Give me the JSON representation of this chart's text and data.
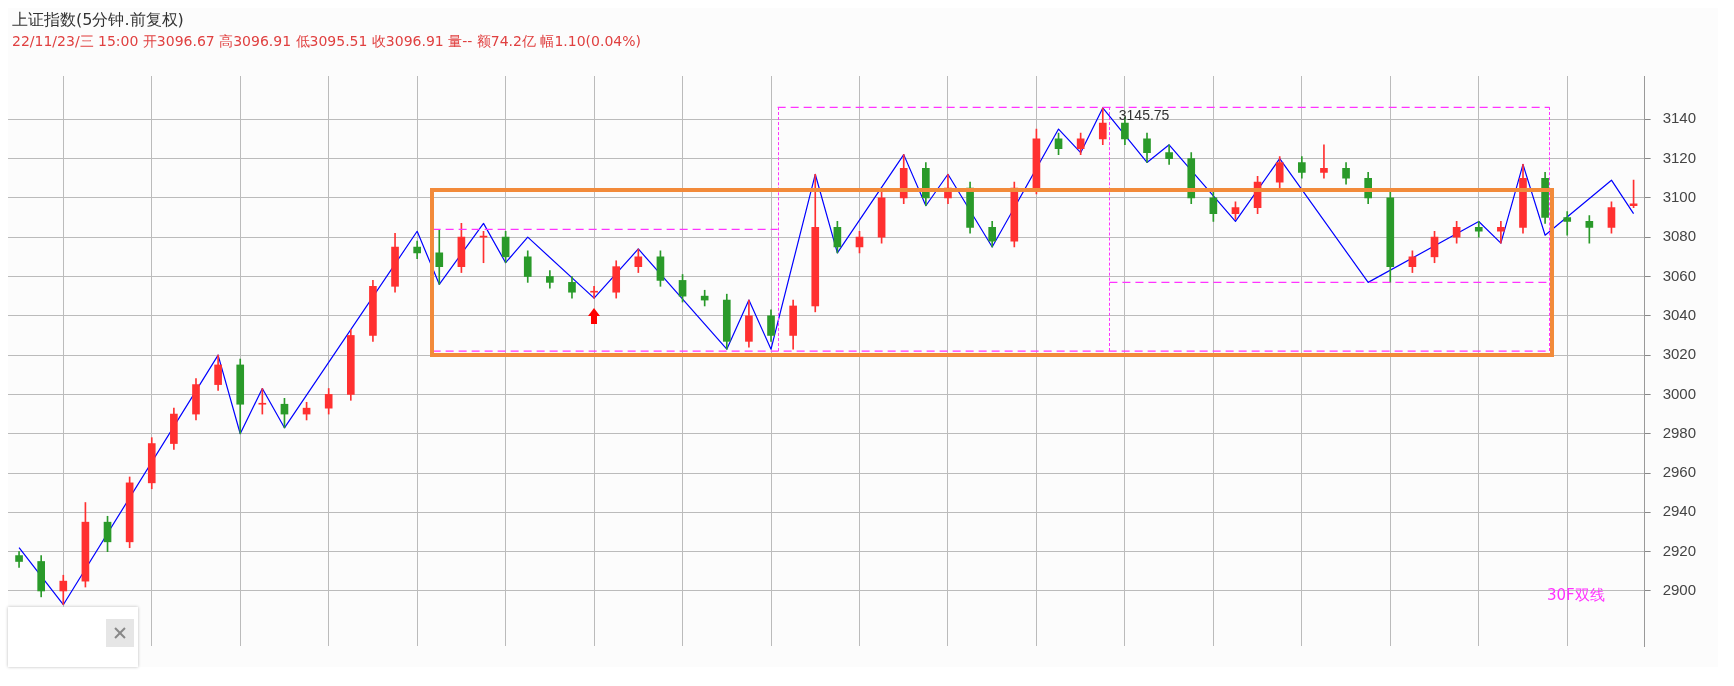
{
  "chart_data": {
    "type": "candlestick",
    "title": "上证指数(5分钟.前复权)",
    "subtitle": "22/11/23/三 15:00 开3096.67 高3096.91 低3095.51 收3096.91 量-- 额74.2亿 幅1.10(0.04%)",
    "categories": [
      null,
      null,
      null,
      null,
      null,
      null,
      null,
      null,
      null,
      null,
      null,
      null,
      null,
      null,
      null,
      null,
      null,
      null,
      null,
      null,
      null,
      null,
      null,
      null,
      null,
      null,
      null,
      null,
      null,
      null,
      null,
      null,
      null,
      null,
      null,
      null,
      null,
      null,
      null,
      null,
      null,
      null,
      null,
      null,
      null,
      null,
      null,
      null,
      null,
      null,
      null,
      null,
      null,
      null,
      null,
      null,
      null,
      null,
      null,
      null,
      null,
      null,
      null,
      null,
      null,
      null,
      null,
      null,
      null,
      null,
      null,
      null,
      null,
      null
    ],
    "ohlc": [
      [
        2918,
        2920,
        2912,
        2915
      ],
      [
        2915,
        2918,
        2897,
        2900
      ],
      [
        2900,
        2908,
        2893,
        2905
      ],
      [
        2905,
        2945,
        2902,
        2935
      ],
      [
        2935,
        2938,
        2920,
        2925
      ],
      [
        2925,
        2958,
        2922,
        2955
      ],
      [
        2955,
        2978,
        2952,
        2975
      ],
      [
        2975,
        2993,
        2972,
        2990
      ],
      [
        2990,
        3008,
        2987,
        3005
      ],
      [
        3005,
        3020,
        3002,
        3015
      ],
      [
        3015,
        3018,
        2980,
        2995
      ],
      [
        2995,
        3003,
        2990,
        2995
      ],
      [
        2995,
        2998,
        2983,
        2990
      ],
      [
        2990,
        2996,
        2987,
        2993
      ],
      [
        2993,
        3003,
        2990,
        3000
      ],
      [
        3000,
        3033,
        2997,
        3030
      ],
      [
        3030,
        3058,
        3027,
        3055
      ],
      [
        3055,
        3082,
        3052,
        3075
      ],
      [
        3075,
        3078,
        3069,
        3072
      ],
      [
        3072,
        3084,
        3056,
        3065
      ],
      [
        3065,
        3087,
        3062,
        3080
      ],
      [
        3080,
        3083,
        3067,
        3080
      ],
      [
        3080,
        3083,
        3067,
        3070
      ],
      [
        3070,
        3073,
        3057,
        3060
      ],
      [
        3060,
        3063,
        3054,
        3057
      ],
      [
        3057,
        3060,
        3049,
        3052
      ],
      [
        3052,
        3055,
        3049,
        3052
      ],
      [
        3052,
        3068,
        3049,
        3065
      ],
      [
        3065,
        3074,
        3062,
        3070
      ],
      [
        3070,
        3073,
        3055,
        3058
      ],
      [
        3058,
        3061,
        3047,
        3050
      ],
      [
        3050,
        3053,
        3045,
        3048
      ],
      [
        3048,
        3051,
        3023,
        3027
      ],
      [
        3027,
        3048,
        3024,
        3040
      ],
      [
        3040,
        3043,
        3027,
        3030
      ],
      [
        3030,
        3048,
        3023,
        3045
      ],
      [
        3045,
        3112,
        3042,
        3085
      ],
      [
        3085,
        3088,
        3072,
        3075
      ],
      [
        3075,
        3083,
        3072,
        3080
      ],
      [
        3080,
        3103,
        3077,
        3100
      ],
      [
        3100,
        3122,
        3097,
        3115
      ],
      [
        3115,
        3118,
        3096,
        3100
      ],
      [
        3100,
        3112,
        3097,
        3105
      ],
      [
        3105,
        3108,
        3082,
        3085
      ],
      [
        3085,
        3088,
        3075,
        3078
      ],
      [
        3078,
        3108,
        3075,
        3105
      ],
      [
        3105,
        3135,
        3102,
        3130
      ],
      [
        3130,
        3133,
        3122,
        3125
      ],
      [
        3125,
        3133,
        3122,
        3130
      ],
      [
        3130,
        3145.75,
        3127,
        3138
      ],
      [
        3138,
        3141,
        3127,
        3130
      ],
      [
        3130,
        3133,
        3118,
        3123
      ],
      [
        3123,
        3127,
        3117,
        3120
      ],
      [
        3120,
        3123,
        3097,
        3100
      ],
      [
        3100,
        3103,
        3088,
        3092
      ],
      [
        3092,
        3098,
        3089,
        3095
      ],
      [
        3095,
        3111,
        3092,
        3108
      ],
      [
        3108,
        3121,
        3105,
        3118
      ],
      [
        3118,
        3121,
        3110,
        3113
      ],
      [
        3113,
        3127,
        3110,
        3115
      ],
      [
        3115,
        3118,
        3107,
        3110
      ],
      [
        3110,
        3113,
        3097,
        3100
      ],
      [
        3100,
        3103,
        3057,
        3065
      ],
      [
        3065,
        3073,
        3062,
        3070
      ],
      [
        3070,
        3083,
        3067,
        3080
      ],
      [
        3080,
        3088,
        3077,
        3085
      ],
      [
        3085,
        3088,
        3080,
        3083
      ],
      [
        3083,
        3088,
        3077,
        3085
      ],
      [
        3085,
        3117,
        3082,
        3110
      ],
      [
        3110,
        3113,
        3087,
        3090
      ],
      [
        3090,
        3093,
        3081,
        3088
      ],
      [
        3088,
        3091,
        3077,
        3085
      ],
      [
        3085,
        3098,
        3082,
        3095
      ],
      [
        3096,
        3109,
        3095,
        3097
      ]
    ],
    "series": [
      {
        "type": "line",
        "color": "#0000ff",
        "values": [
          2922,
          null,
          2893,
          null,
          null,
          null,
          null,
          null,
          null,
          3020,
          2980,
          3003,
          2983,
          null,
          null,
          null,
          null,
          null,
          3083,
          3056,
          null,
          3087,
          3067,
          3080,
          null,
          null,
          3049,
          null,
          3074,
          null,
          null,
          null,
          3023,
          3048,
          3023,
          null,
          3112,
          3072,
          null,
          null,
          3122,
          3096,
          3112,
          null,
          3075,
          null,
          null,
          3135,
          3123,
          3145.75,
          null,
          3118,
          3127,
          null,
          null,
          3088,
          null,
          3120,
          null,
          null,
          null,
          3057,
          null,
          null,
          null,
          null,
          3088,
          3077,
          3117,
          3081,
          null,
          null,
          3109,
          3092
        ]
      }
    ],
    "ylim": [
      2872,
      3162
    ],
    "yticks": [
      2900,
      2920,
      2940,
      2960,
      2980,
      3000,
      3020,
      3040,
      3060,
      3080,
      3100,
      3120,
      3140
    ],
    "grid": true,
    "legend": false,
    "ref_lines": [
      {
        "axis": "y",
        "value": 3146,
        "color": "#ff33ff",
        "line_style": "dashed"
      },
      {
        "axis": "y",
        "value": 3084,
        "color": "#ff33ff",
        "line_style": "dashed"
      },
      {
        "axis": "y",
        "value": 3057,
        "color": "#ff33ff",
        "line_style": "dashed"
      },
      {
        "axis": "y",
        "value": 3022,
        "color": "#ff33ff",
        "line_style": "dashed"
      }
    ],
    "annotations": [
      "3145.75",
      "30F双线"
    ]
  }
}
